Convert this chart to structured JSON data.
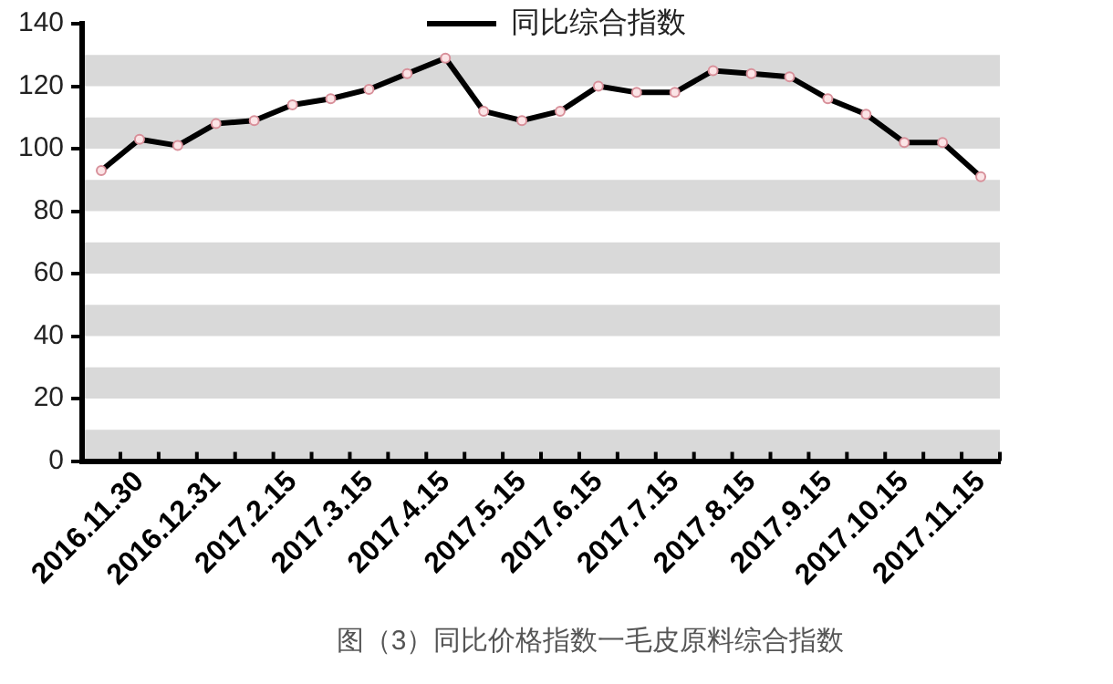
{
  "chart_data": {
    "type": "line",
    "title": "图（3）同比价格指数一毛皮原料综合指数",
    "categories": [
      null,
      "2016.11.30",
      null,
      "2016.12.31",
      null,
      "2017.2.15",
      null,
      "2017.3.15",
      null,
      "2017.4.15",
      null,
      "2017.5.15",
      null,
      "2017.6.15",
      null,
      "2017.7.15",
      null,
      "2017.8.15",
      null,
      "2017.9.15",
      null,
      "2017.10.15",
      null,
      "2017.11.15"
    ],
    "series": [
      {
        "name": "同比综合指数",
        "color": "#000000",
        "values": [
          93,
          103,
          101,
          108,
          109,
          114,
          116,
          119,
          124,
          129,
          112,
          109,
          112,
          120,
          118,
          118,
          125,
          124,
          123,
          116,
          111,
          102,
          102,
          91
        ]
      }
    ],
    "ylim": [
      0,
      140
    ],
    "yticks": [
      0,
      20,
      40,
      60,
      80,
      100,
      120,
      140
    ],
    "bands": [
      {
        "axis": "y",
        "from": 0,
        "to": 10,
        "color": "#d9d9d9"
      },
      {
        "axis": "y",
        "from": 20,
        "to": 30,
        "color": "#d9d9d9"
      },
      {
        "axis": "y",
        "from": 40,
        "to": 50,
        "color": "#d9d9d9"
      },
      {
        "axis": "y",
        "from": 60,
        "to": 70,
        "color": "#d9d9d9"
      },
      {
        "axis": "y",
        "from": 80,
        "to": 90,
        "color": "#d9d9d9"
      },
      {
        "axis": "y",
        "from": 100,
        "to": 110,
        "color": "#d9d9d9"
      },
      {
        "axis": "y",
        "from": 120,
        "to": 130,
        "color": "#d9d9d9"
      }
    ],
    "grid": false,
    "legend": "top",
    "marker": "circle",
    "line_style": "solid"
  }
}
